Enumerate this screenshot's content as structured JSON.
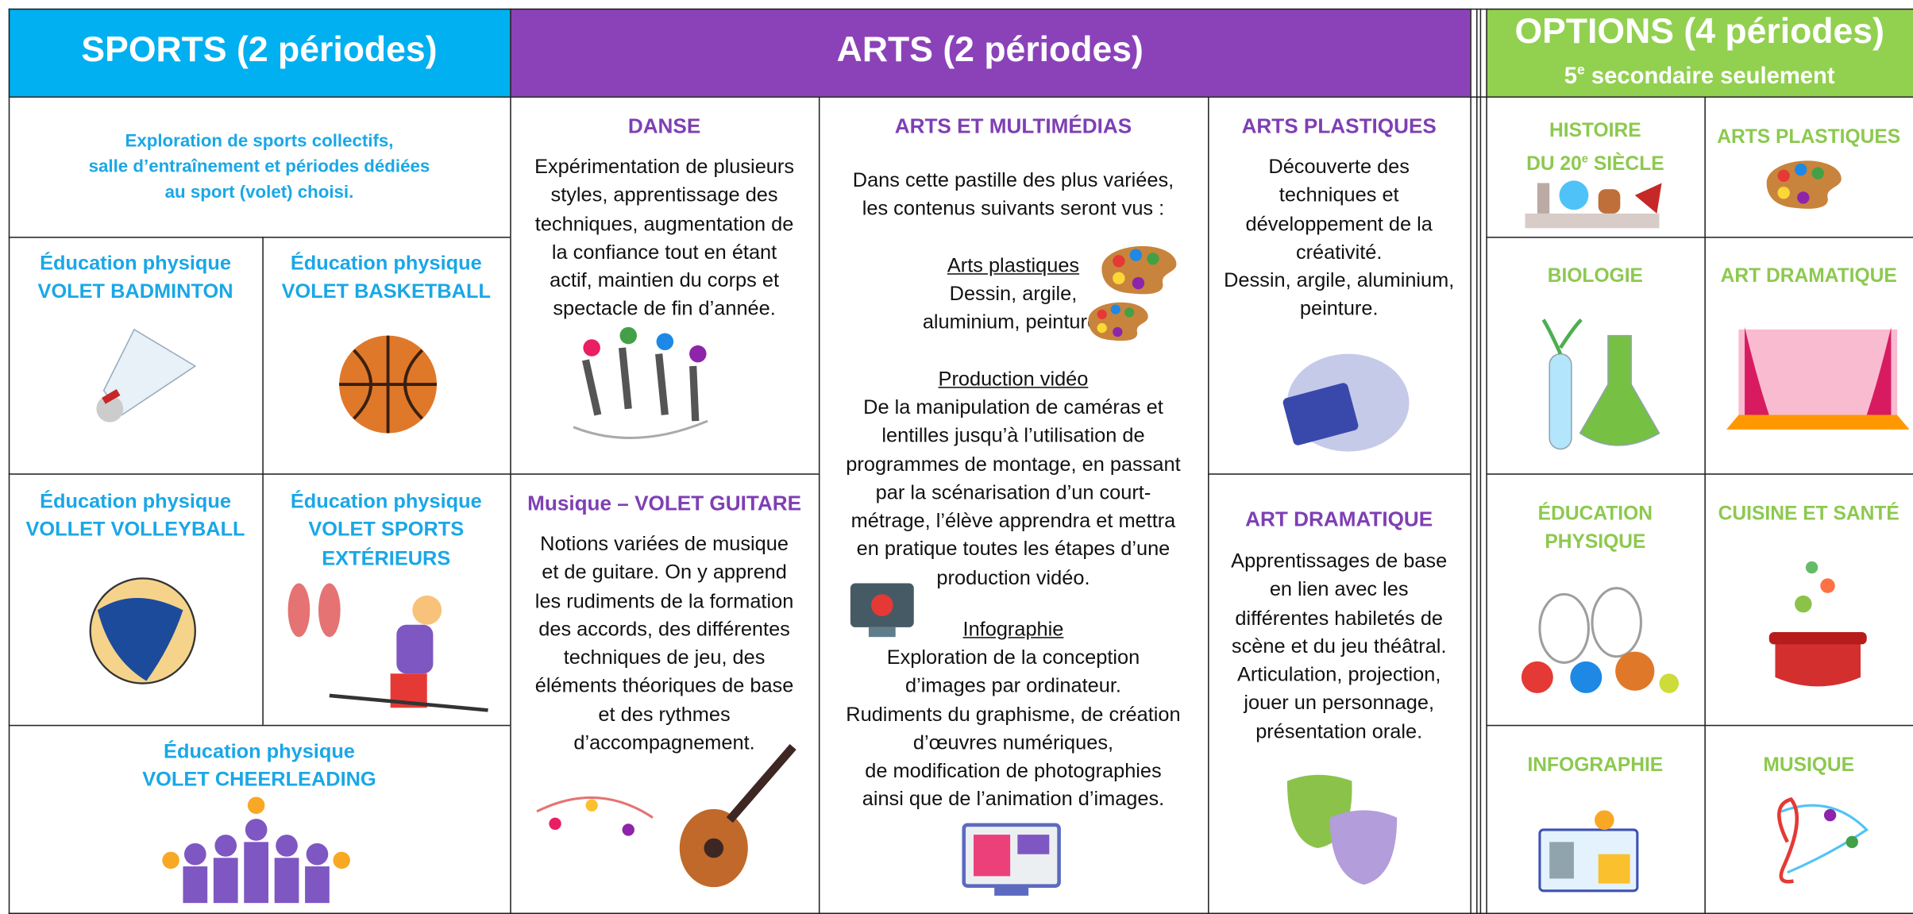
{
  "sports": {
    "title": "SPORTS (2 périodes)",
    "intro": [
      "Exploration de sports collectifs,",
      "salle d’entraînement et périodes dédiées",
      "au sport (volet) choisi."
    ],
    "cells": [
      [
        "Éducation physique",
        "VOLET BADMINTON"
      ],
      [
        "Éducation physique",
        "VOLET BASKETBALL"
      ],
      [
        "Éducation physique",
        "VOLLET VOLLEYBALL"
      ],
      [
        "Éducation physique",
        "VOLET SPORTS",
        "EXTÉRIEURS"
      ],
      [
        "Éducation physique",
        "VOLET CHEERLEADING"
      ]
    ]
  },
  "arts": {
    "title": "ARTS (2 périodes)",
    "danse": {
      "title": "DANSE",
      "text": [
        "Expérimentation de plusieurs",
        "styles, apprentissage des",
        "techniques, augmentation de",
        "la confiance tout en étant",
        "actif, maintien du corps et",
        "spectacle de fin d’année."
      ]
    },
    "musique": {
      "title": "Musique – VOLET GUITARE",
      "text": [
        "Notions variées de musique",
        "et de guitare. On y apprend",
        "les rudiments de la formation",
        "des accords, des différentes",
        "techniques de jeu, des",
        "éléments théoriques de base",
        "et des rythmes",
        "d’accompagnement."
      ]
    },
    "multimedia": {
      "title": "ARTS ET MULTIMÉDIAS",
      "intro": [
        "Dans cette pastille des plus variées,",
        "les contenus suivants seront vus :"
      ],
      "parts": [
        {
          "heading": "Arts plastiques",
          "text": [
            "Dessin, argile,",
            "aluminium, peinture."
          ]
        },
        {
          "heading": "Production vidéo",
          "text": [
            "De la manipulation de caméras et",
            "lentilles jusqu’à l’utilisation de",
            "programmes de montage, en passant",
            "par la scénarisation d’un court-",
            "métrage, l’élève apprendra et mettra",
            "en pratique toutes les étapes d’une",
            "production vidéo."
          ]
        },
        {
          "heading": "Infographie",
          "text": [
            "Exploration de la conception",
            "d’images par ordinateur.",
            "Rudiments du graphisme, de création",
            "d’œuvres numériques,",
            "de modification de photographies",
            "ainsi que de l’animation d’images."
          ]
        }
      ]
    },
    "plastiques": {
      "title": "ARTS PLASTIQUES",
      "text": [
        "Découverte des",
        "techniques et",
        "développement de la",
        "créativité.",
        "Dessin, argile, aluminium,",
        "peinture."
      ]
    },
    "dramatique": {
      "title": "ART DRAMATIQUE",
      "text": [
        "Apprentissages de base",
        "en lien avec les",
        "différentes habiletés de",
        "scène et du jeu théâtral.",
        "Articulation, projection,",
        "jouer un personnage,",
        "présentation orale."
      ]
    }
  },
  "options": {
    "title": "OPTIONS (4 périodes)",
    "subtitle": {
      "pre": "5",
      "sup": "e",
      "post": " secondaire seulement"
    },
    "cells": [
      [
        "HISTOIRE",
        {
          "pre": "DU 20",
          "sup": "e",
          "post": " SIÈCLE"
        }
      ],
      [
        "ARTS PLASTIQUES"
      ],
      [
        "BIOLOGIE"
      ],
      [
        "ART DRAMATIQUE"
      ],
      [
        "ÉDUCATION",
        "PHYSIQUE"
      ],
      [
        "CUISINE ET SANTÉ"
      ],
      [
        "INFOGRAPHIE"
      ],
      [
        "MUSIQUE"
      ]
    ]
  }
}
